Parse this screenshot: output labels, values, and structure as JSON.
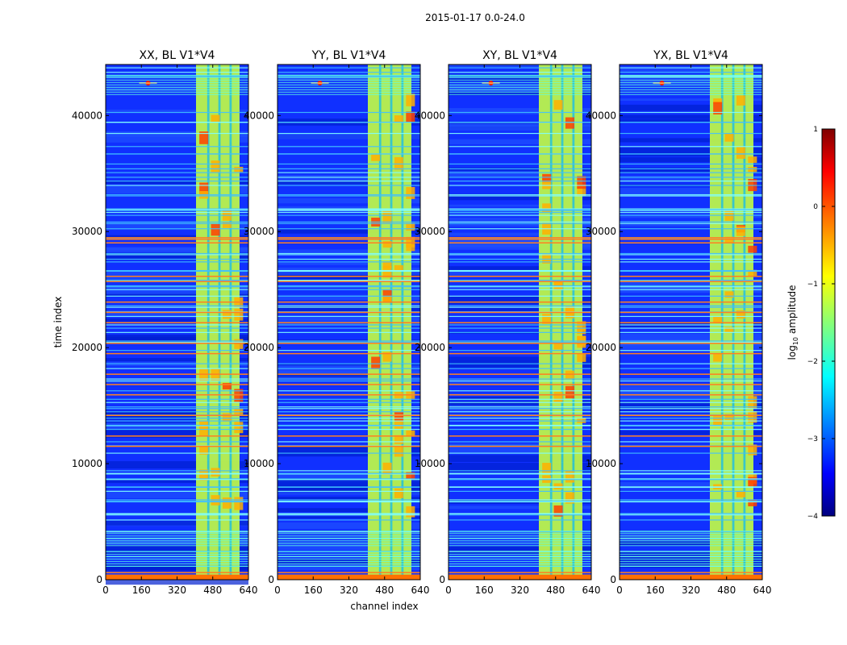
{
  "figure_title": "2015-01-17 0.0-24.0",
  "chart_data": [
    {
      "type": "heatmap",
      "title": "XX, BL V1*V4",
      "xlabel": "",
      "ylabel": "time index",
      "xlim": [
        0,
        640
      ],
      "ylim": [
        0,
        44400
      ],
      "xticks": [
        0,
        160,
        320,
        480,
        640
      ],
      "yticks": [
        0,
        10000,
        20000,
        30000,
        40000
      ],
      "xtick_labels": [
        "0",
        "160",
        "320",
        "480",
        "640"
      ],
      "ytick_labels": [
        "0",
        "10000",
        "20000",
        "30000",
        "40000"
      ]
    },
    {
      "type": "heatmap",
      "title": "YY, BL V1*V4",
      "xlabel": "channel index",
      "ylabel": "",
      "xlim": [
        0,
        640
      ],
      "ylim": [
        0,
        44400
      ],
      "xticks": [
        0,
        160,
        320,
        480,
        640
      ],
      "yticks": [
        0,
        10000,
        20000,
        30000,
        40000
      ],
      "xtick_labels": [
        "0",
        "160",
        "320",
        "480",
        "640"
      ],
      "ytick_labels": [
        "0",
        "10000",
        "20000",
        "30000",
        "40000"
      ]
    },
    {
      "type": "heatmap",
      "title": "XY, BL V1*V4",
      "xlabel": "",
      "ylabel": "",
      "xlim": [
        0,
        640
      ],
      "ylim": [
        0,
        44400
      ],
      "xticks": [
        0,
        160,
        320,
        480,
        640
      ],
      "yticks": [
        0,
        10000,
        20000,
        30000,
        40000
      ],
      "xtick_labels": [
        "0",
        "160",
        "320",
        "480",
        "640"
      ],
      "ytick_labels": [
        "0",
        "10000",
        "20000",
        "30000",
        "40000"
      ]
    },
    {
      "type": "heatmap",
      "title": "YX, BL V1*V4",
      "xlabel": "",
      "ylabel": "",
      "xlim": [
        0,
        640
      ],
      "ylim": [
        0,
        44400
      ],
      "xticks": [
        0,
        160,
        320,
        480,
        640
      ],
      "yticks": [
        0,
        10000,
        20000,
        30000,
        40000
      ],
      "xtick_labels": [
        "0",
        "160",
        "320",
        "480",
        "640"
      ],
      "ytick_labels": [
        "0",
        "10000",
        "20000",
        "30000",
        "40000"
      ]
    }
  ],
  "colorbar": {
    "label_main": "log",
    "label_sub": "10",
    "label_rest": " amplitude",
    "ticks": [
      1,
      0,
      -1,
      -2,
      -3,
      -4
    ],
    "tick_labels": [
      "1",
      "0",
      "−1",
      "−2",
      "−3",
      "−4"
    ],
    "range": [
      -4,
      1
    ],
    "colormap": "jet"
  },
  "colors": {
    "jet_dark_blue": "#00007f",
    "jet_blue": "#0000ff",
    "jet_cyan": "#00ffff",
    "jet_yellow": "#ffff00",
    "jet_red": "#ff0000",
    "jet_dark_red": "#7f0000",
    "background": "#ffffff",
    "axis": "#000000"
  }
}
